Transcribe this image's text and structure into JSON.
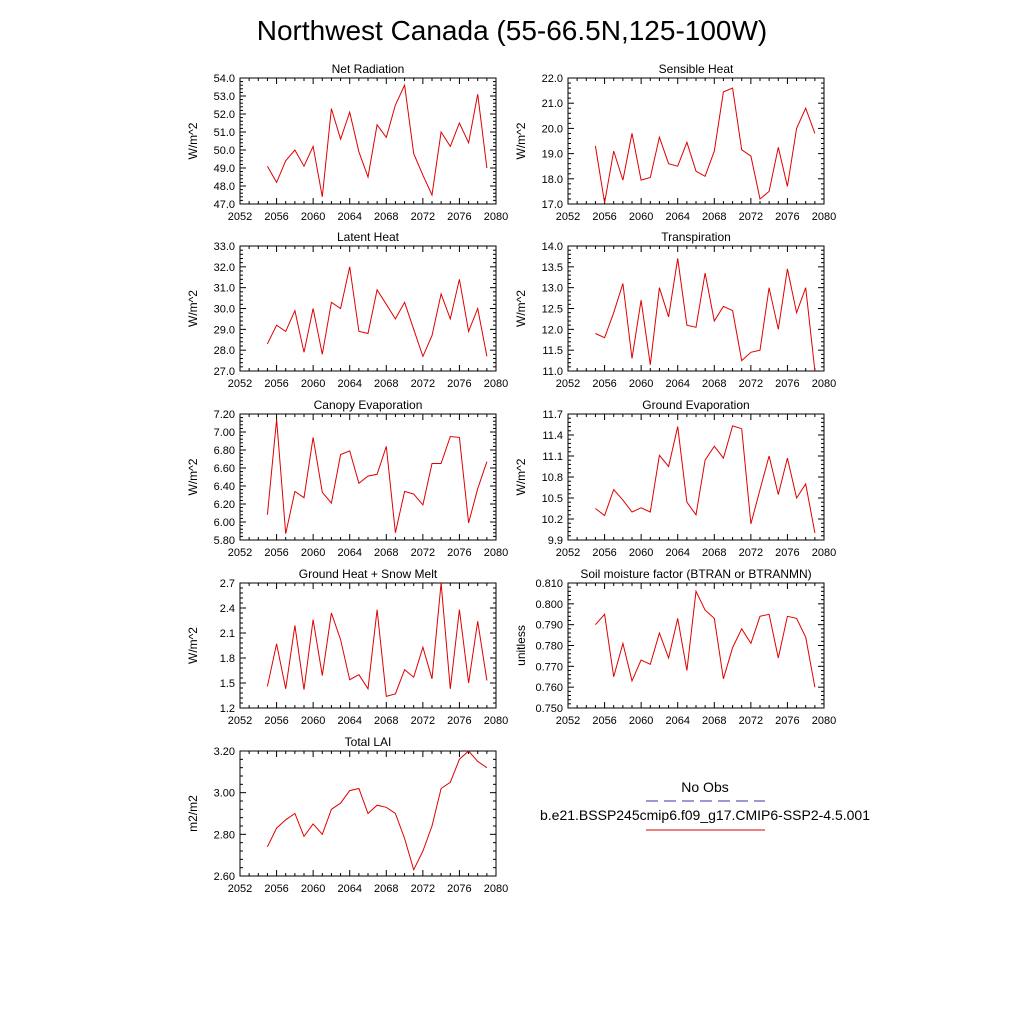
{
  "figure": {
    "title": "Northwest Canada (55-66.5N,125-100W)",
    "legend": {
      "obs_label": "No Obs",
      "obs_color": "#3333aa",
      "case_label": "b.e21.BSSP245cmip6.f09_g17.CMIP6-SSP2-4.5.001",
      "case_color": "#e00000"
    }
  },
  "chart_data": [
    {
      "type": "line",
      "title": "Net Radiation",
      "ylabel": "W/m^2",
      "xlim": [
        2052,
        2080
      ],
      "xticks": [
        2052,
        2056,
        2060,
        2064,
        2068,
        2072,
        2076,
        2080
      ],
      "ylim": [
        47.0,
        54.0
      ],
      "yticks": [
        "47.0",
        "48.0",
        "49.0",
        "50.0",
        "51.0",
        "52.0",
        "53.0",
        "54.0"
      ],
      "x": [
        2055,
        2056,
        2057,
        2058,
        2059,
        2060,
        2061,
        2062,
        2063,
        2064,
        2065,
        2066,
        2067,
        2068,
        2069,
        2070,
        2071,
        2072,
        2073,
        2074,
        2075,
        2076,
        2077,
        2078,
        2079
      ],
      "series": [
        {
          "values": [
            49.1,
            48.2,
            49.4,
            50.0,
            49.1,
            50.2,
            47.4,
            52.3,
            50.6,
            52.1,
            49.9,
            48.5,
            51.4,
            50.7,
            52.5,
            53.6,
            49.8,
            48.6,
            47.5,
            51.0,
            50.2,
            51.5,
            50.4,
            53.1,
            49.0
          ]
        }
      ]
    },
    {
      "type": "line",
      "title": "Sensible Heat",
      "ylabel": "W/m^2",
      "xlim": [
        2052,
        2080
      ],
      "xticks": [
        2052,
        2056,
        2060,
        2064,
        2068,
        2072,
        2076,
        2080
      ],
      "ylim": [
        17.0,
        22.0
      ],
      "yticks": [
        "17.0",
        "18.0",
        "19.0",
        "20.0",
        "21.0",
        "22.0"
      ],
      "x": [
        2055,
        2056,
        2057,
        2058,
        2059,
        2060,
        2061,
        2062,
        2063,
        2064,
        2065,
        2066,
        2067,
        2068,
        2069,
        2070,
        2071,
        2072,
        2073,
        2074,
        2075,
        2076,
        2077,
        2078,
        2079
      ],
      "series": [
        {
          "values": [
            19.3,
            17.05,
            19.1,
            17.95,
            19.8,
            17.95,
            18.05,
            19.65,
            18.6,
            18.5,
            19.45,
            18.3,
            18.1,
            19.1,
            21.45,
            21.6,
            19.15,
            18.9,
            17.2,
            17.5,
            19.25,
            17.7,
            20.0,
            20.8,
            19.8
          ]
        }
      ]
    },
    {
      "type": "line",
      "title": "Latent Heat",
      "ylabel": "W/m^2",
      "xlim": [
        2052,
        2080
      ],
      "xticks": [
        2052,
        2056,
        2060,
        2064,
        2068,
        2072,
        2076,
        2080
      ],
      "ylim": [
        27.0,
        33.0
      ],
      "yticks": [
        "27.0",
        "28.0",
        "29.0",
        "30.0",
        "31.0",
        "32.0",
        "33.0"
      ],
      "x": [
        2055,
        2056,
        2057,
        2058,
        2059,
        2060,
        2061,
        2062,
        2063,
        2064,
        2065,
        2066,
        2067,
        2068,
        2069,
        2070,
        2071,
        2072,
        2073,
        2074,
        2075,
        2076,
        2077,
        2078,
        2079
      ],
      "series": [
        {
          "values": [
            28.3,
            29.2,
            28.9,
            29.9,
            27.9,
            30.0,
            27.8,
            30.3,
            30.0,
            32.0,
            28.9,
            28.8,
            30.9,
            30.2,
            29.5,
            30.3,
            29.0,
            27.7,
            28.7,
            30.7,
            29.5,
            31.4,
            28.9,
            30.0,
            27.7
          ]
        }
      ]
    },
    {
      "type": "line",
      "title": "Transpiration",
      "ylabel": "W/m^2",
      "xlim": [
        2052,
        2080
      ],
      "xticks": [
        2052,
        2056,
        2060,
        2064,
        2068,
        2072,
        2076,
        2080
      ],
      "ylim": [
        11.0,
        14.0
      ],
      "yticks": [
        "11.0",
        "11.5",
        "12.0",
        "12.5",
        "13.0",
        "13.5",
        "14.0"
      ],
      "x": [
        2055,
        2056,
        2057,
        2058,
        2059,
        2060,
        2061,
        2062,
        2063,
        2064,
        2065,
        2066,
        2067,
        2068,
        2069,
        2070,
        2071,
        2072,
        2073,
        2074,
        2075,
        2076,
        2077,
        2078,
        2079
      ],
      "series": [
        {
          "values": [
            11.9,
            11.8,
            12.4,
            13.1,
            11.3,
            12.7,
            11.15,
            13.0,
            12.3,
            13.7,
            12.1,
            12.05,
            13.35,
            12.2,
            12.55,
            12.45,
            11.25,
            11.45,
            11.5,
            13.0,
            12.0,
            13.45,
            12.4,
            13.0,
            11.0
          ]
        }
      ]
    },
    {
      "type": "line",
      "title": "Canopy Evaporation",
      "ylabel": "W/m^2",
      "xlim": [
        2052,
        2080
      ],
      "xticks": [
        2052,
        2056,
        2060,
        2064,
        2068,
        2072,
        2076,
        2080
      ],
      "ylim": [
        5.8,
        7.2
      ],
      "yticks": [
        "5.80",
        "6.00",
        "6.20",
        "6.40",
        "6.60",
        "6.80",
        "7.00",
        "7.20"
      ],
      "x": [
        2055,
        2056,
        2057,
        2058,
        2059,
        2060,
        2061,
        2062,
        2063,
        2064,
        2065,
        2066,
        2067,
        2068,
        2069,
        2070,
        2071,
        2072,
        2073,
        2074,
        2075,
        2076,
        2077,
        2078,
        2079
      ],
      "series": [
        {
          "values": [
            6.08,
            7.14,
            5.87,
            6.34,
            6.27,
            6.94,
            6.33,
            6.21,
            6.75,
            6.79,
            6.43,
            6.51,
            6.53,
            6.84,
            5.88,
            6.34,
            6.31,
            6.19,
            6.65,
            6.65,
            6.95,
            6.94,
            5.99,
            6.37,
            6.67
          ]
        }
      ]
    },
    {
      "type": "line",
      "title": "Ground Evaporation",
      "ylabel": "W/m^2",
      "xlim": [
        2052,
        2080
      ],
      "xticks": [
        2052,
        2056,
        2060,
        2064,
        2068,
        2072,
        2076,
        2080
      ],
      "ylim": [
        9.9,
        11.7
      ],
      "yticks": [
        "9.9",
        "10.2",
        "10.5",
        "10.8",
        "11.1",
        "11.4",
        "11.7"
      ],
      "x": [
        2055,
        2056,
        2057,
        2058,
        2059,
        2060,
        2061,
        2062,
        2063,
        2064,
        2065,
        2066,
        2067,
        2068,
        2069,
        2070,
        2071,
        2072,
        2073,
        2074,
        2075,
        2076,
        2077,
        2078,
        2079
      ],
      "series": [
        {
          "values": [
            10.35,
            10.25,
            10.62,
            10.47,
            10.3,
            10.36,
            10.3,
            11.11,
            10.95,
            11.52,
            10.44,
            10.26,
            11.04,
            11.24,
            11.07,
            11.53,
            11.49,
            10.13,
            10.62,
            11.1,
            10.55,
            11.07,
            10.5,
            10.7,
            10.0
          ]
        }
      ]
    },
    {
      "type": "line",
      "title": "Ground Heat + Snow Melt",
      "ylabel": "W/m^2",
      "xlim": [
        2052,
        2080
      ],
      "xticks": [
        2052,
        2056,
        2060,
        2064,
        2068,
        2072,
        2076,
        2080
      ],
      "ylim": [
        1.2,
        2.7
      ],
      "yticks": [
        "1.2",
        "1.5",
        "1.8",
        "2.1",
        "2.4",
        "2.7"
      ],
      "x": [
        2055,
        2056,
        2057,
        2058,
        2059,
        2060,
        2061,
        2062,
        2063,
        2064,
        2065,
        2066,
        2067,
        2068,
        2069,
        2070,
        2071,
        2072,
        2073,
        2074,
        2075,
        2076,
        2077,
        2078,
        2079
      ],
      "series": [
        {
          "values": [
            1.46,
            1.97,
            1.43,
            2.19,
            1.42,
            2.26,
            1.59,
            2.34,
            2.02,
            1.54,
            1.6,
            1.43,
            2.38,
            1.34,
            1.37,
            1.66,
            1.57,
            1.93,
            1.55,
            2.7,
            1.43,
            2.38,
            1.5,
            2.24,
            1.53
          ]
        }
      ]
    },
    {
      "type": "line",
      "title": "Soil moisture factor (BTRAN or BTRANMN)",
      "ylabel": "unitless",
      "xlim": [
        2052,
        2080
      ],
      "xticks": [
        2052,
        2056,
        2060,
        2064,
        2068,
        2072,
        2076,
        2080
      ],
      "ylim": [
        0.75,
        0.81
      ],
      "yticks": [
        "0.750",
        "0.760",
        "0.770",
        "0.780",
        "0.790",
        "0.800",
        "0.810"
      ],
      "x": [
        2055,
        2056,
        2057,
        2058,
        2059,
        2060,
        2061,
        2062,
        2063,
        2064,
        2065,
        2066,
        2067,
        2068,
        2069,
        2070,
        2071,
        2072,
        2073,
        2074,
        2075,
        2076,
        2077,
        2078,
        2079
      ],
      "series": [
        {
          "values": [
            0.79,
            0.795,
            0.765,
            0.781,
            0.763,
            0.773,
            0.771,
            0.786,
            0.774,
            0.793,
            0.768,
            0.806,
            0.797,
            0.793,
            0.764,
            0.779,
            0.788,
            0.781,
            0.794,
            0.795,
            0.774,
            0.794,
            0.793,
            0.784,
            0.76
          ]
        }
      ]
    },
    {
      "type": "line",
      "title": "Total LAI",
      "ylabel": "m2/m2",
      "xlim": [
        2052,
        2080
      ],
      "xticks": [
        2052,
        2056,
        2060,
        2064,
        2068,
        2072,
        2076,
        2080
      ],
      "ylim": [
        2.6,
        3.2
      ],
      "yticks": [
        "2.60",
        "2.80",
        "3.00",
        "3.20"
      ],
      "x": [
        2055,
        2056,
        2057,
        2058,
        2059,
        2060,
        2061,
        2062,
        2063,
        2064,
        2065,
        2066,
        2067,
        2068,
        2069,
        2070,
        2071,
        2072,
        2073,
        2074,
        2075,
        2076,
        2077,
        2078,
        2079
      ],
      "series": [
        {
          "values": [
            2.74,
            2.83,
            2.87,
            2.9,
            2.79,
            2.85,
            2.8,
            2.92,
            2.95,
            3.01,
            3.02,
            2.9,
            2.94,
            2.93,
            2.9,
            2.78,
            2.63,
            2.72,
            2.84,
            3.02,
            3.05,
            3.16,
            3.2,
            3.15,
            3.12
          ]
        }
      ]
    }
  ]
}
